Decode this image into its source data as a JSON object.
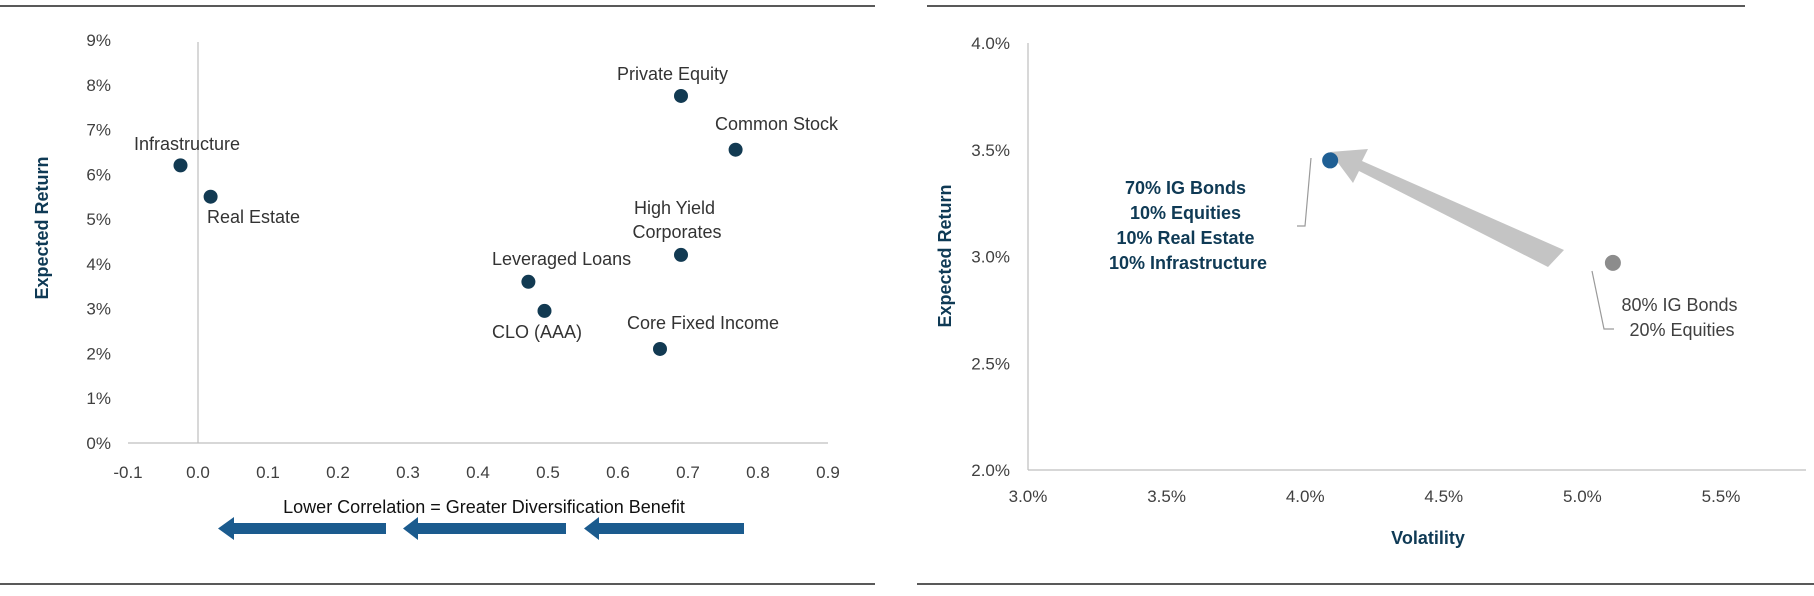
{
  "colors": {
    "point_dark": "#123a52",
    "arrow_blue": "#1b5b8e",
    "axis_line": "#bfbfbf",
    "frame_line": "#222222",
    "point_gray": "#8c8c8c",
    "point_blue": "#1f5f94",
    "arrow_gray": "#c4c4c4"
  },
  "chart_data": [
    {
      "type": "scatter",
      "title": "",
      "xlabel": "",
      "ylabel": "Expected Return",
      "xlim": [
        -0.1,
        0.9
      ],
      "ylim": [
        0,
        9
      ],
      "x_ticks": [
        "-0.1",
        "0.0",
        "0.1",
        "0.2",
        "0.3",
        "0.4",
        "0.5",
        "0.6",
        "0.7",
        "0.8",
        "0.9"
      ],
      "y_ticks": [
        "0%",
        "1%",
        "2%",
        "3%",
        "4%",
        "5%",
        "6%",
        "7%",
        "8%",
        "9%"
      ],
      "subtitle": "Lower Correlation = Greater Diversification Benefit",
      "points": [
        {
          "label": "Infrastructure",
          "x": -0.025,
          "y": 6.2
        },
        {
          "label": "Real Estate",
          "x": 0.018,
          "y": 5.5
        },
        {
          "label": "Leveraged Loans",
          "x": 0.472,
          "y": 3.6
        },
        {
          "label": "CLO (AAA)",
          "x": 0.495,
          "y": 2.95
        },
        {
          "label": "Private Equity",
          "x": 0.69,
          "y": 7.75
        },
        {
          "label": "Common Stock",
          "x": 0.768,
          "y": 6.55
        },
        {
          "label": "High Yield Corporates",
          "x": 0.69,
          "y": 4.2
        },
        {
          "label": "Core Fixed Income",
          "x": 0.66,
          "y": 2.1
        }
      ]
    },
    {
      "type": "scatter",
      "title": "",
      "xlabel": "Volatility",
      "ylabel": "Expected Return",
      "xlim": [
        3.0,
        5.9
      ],
      "ylim": [
        2.0,
        4.0
      ],
      "x_ticks": [
        "3.0%",
        "3.5%",
        "4.0%",
        "4.5%",
        "5.0%",
        "5.5%"
      ],
      "y_ticks": [
        "2.0%",
        "2.5%",
        "3.0%",
        "3.5%",
        "4.0%"
      ],
      "points": [
        {
          "label_lines": [
            "70% IG Bonds",
            "10% Equities",
            "10% Real Estate",
            "10% Infrastructure"
          ],
          "x": 4.09,
          "y": 3.45
        },
        {
          "label_lines": [
            "80% IG Bonds",
            "20% Equities"
          ],
          "x": 5.11,
          "y": 2.97
        }
      ]
    }
  ]
}
